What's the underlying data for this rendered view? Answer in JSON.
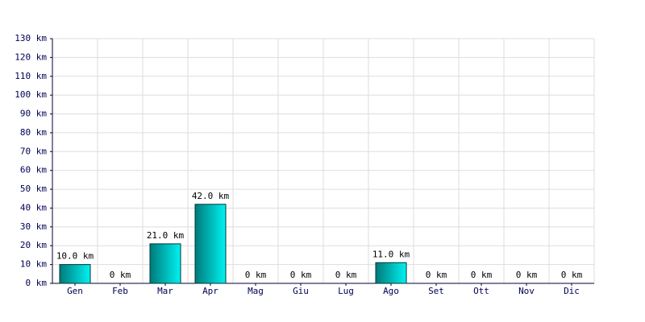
{
  "chart_data": {
    "type": "bar",
    "categories": [
      "Gen",
      "Feb",
      "Mar",
      "Apr",
      "Mag",
      "Giu",
      "Lug",
      "Ago",
      "Set",
      "Ott",
      "Nov",
      "Dic"
    ],
    "values": [
      10,
      0,
      21,
      42,
      0,
      0,
      0,
      11,
      0,
      0,
      0,
      0
    ],
    "value_labels": [
      "10.0 km",
      "0 km",
      "21.0 km",
      "42.0 km",
      "0 km",
      "0 km",
      "0 km",
      "11.0 km",
      "0 km",
      "0 km",
      "0 km",
      "0 km"
    ],
    "colors": [
      "#007a7a",
      "#00f2f2"
    ],
    "ylim": [
      0,
      130
    ],
    "yticks": [
      {
        "value": 0,
        "label": "0 km"
      },
      {
        "value": 10,
        "label": "10 km"
      },
      {
        "value": 20,
        "label": "20 km"
      },
      {
        "value": 30,
        "label": "30 km"
      },
      {
        "value": 40,
        "label": "40 km"
      },
      {
        "value": 50,
        "label": "50 km"
      },
      {
        "value": 60,
        "label": "60 km"
      },
      {
        "value": 70,
        "label": "70 km"
      },
      {
        "value": 80,
        "label": "80 km"
      },
      {
        "value": 90,
        "label": "90 km"
      },
      {
        "value": 100,
        "label": "100 km"
      },
      {
        "value": 110,
        "label": "110 km"
      },
      {
        "value": 120,
        "label": "120 km"
      },
      {
        "value": 130,
        "label": "130 km"
      }
    ],
    "grid": true
  }
}
